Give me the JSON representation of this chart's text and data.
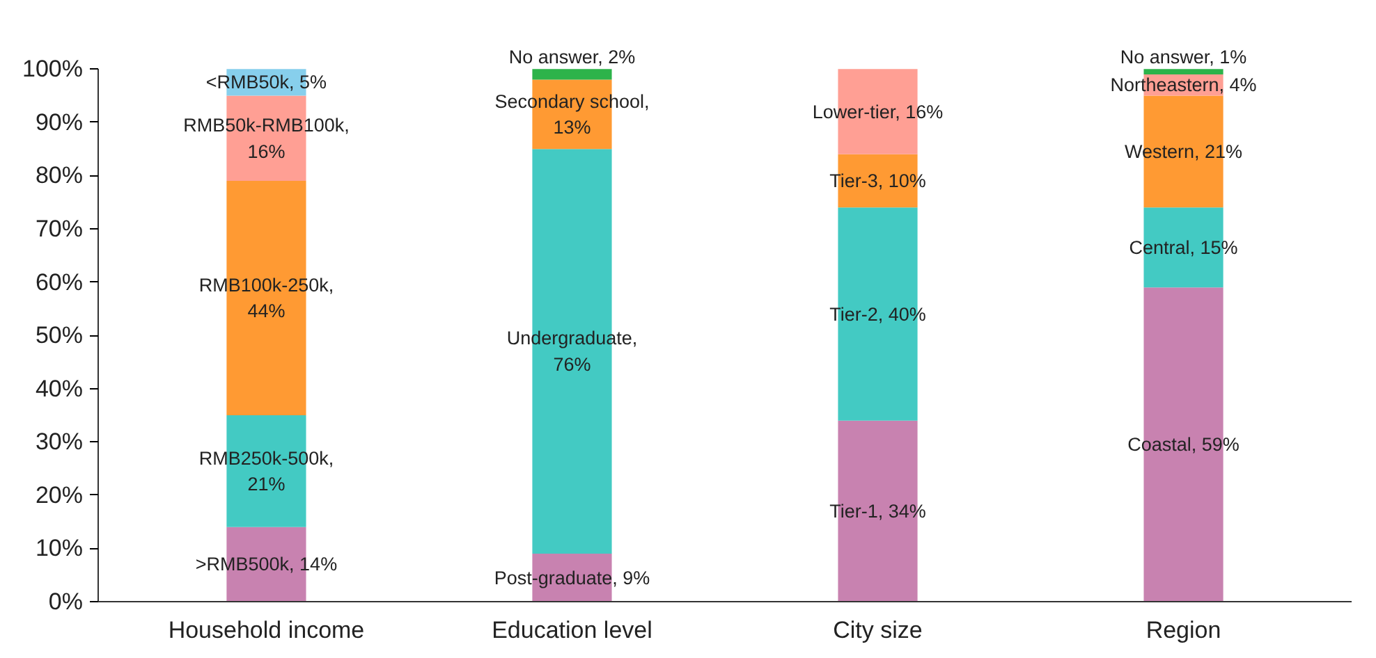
{
  "chart_data": {
    "type": "bar",
    "stacked": true,
    "categories": [
      "Household income",
      "Education level",
      "City size",
      "Region"
    ],
    "ylim": [
      0,
      100
    ],
    "yticks": [
      {
        "value": 0,
        "label": "0%"
      },
      {
        "value": 10,
        "label": "10%"
      },
      {
        "value": 20,
        "label": "20%"
      },
      {
        "value": 30,
        "label": "30%"
      },
      {
        "value": 40,
        "label": "40%"
      },
      {
        "value": 50,
        "label": "50%"
      },
      {
        "value": 60,
        "label": "60%"
      },
      {
        "value": 70,
        "label": "70%"
      },
      {
        "value": 80,
        "label": "80%"
      },
      {
        "value": 90,
        "label": "90%"
      },
      {
        "value": 100,
        "label": "100%"
      }
    ],
    "grid": false,
    "series": [
      {
        "color": "#c882b0",
        "values": [
          14,
          9,
          34,
          59
        ],
        "value_labels": [
          ">RMB500k, 14%",
          "Post-graduate, 9%",
          "Tier-1, 34%",
          "Coastal, 59%"
        ]
      },
      {
        "color": "#43cac3",
        "values": [
          21,
          76,
          40,
          15
        ],
        "value_labels": [
          "RMB250k-500k,\n21%",
          "Undergraduate,\n76%",
          "Tier-2, 40%",
          "Central, 15%"
        ]
      },
      {
        "color": "#ff9a33",
        "values": [
          44,
          13,
          10,
          21
        ],
        "value_labels": [
          "RMB100k-250k,\n44%",
          "Secondary school,\n13%",
          "Tier-3, 10%",
          "Western, 21%"
        ]
      },
      {
        "color": "#ff9f94",
        "values": [
          16,
          null,
          16,
          4
        ],
        "value_labels": [
          "RMB50k-RMB100k,\n16%",
          null,
          "Lower-tier, 16%",
          "Northeastern, 4%"
        ]
      },
      {
        "color": "#87cfec",
        "values": [
          5,
          null,
          null,
          null
        ],
        "value_labels": [
          "<RMB50k, 5%",
          null,
          null,
          null
        ]
      },
      {
        "color": "#2db34a",
        "values": [
          null,
          2,
          null,
          1
        ],
        "value_labels": [
          null,
          "No answer, 2%",
          null,
          "No answer, 1%"
        ]
      }
    ]
  }
}
